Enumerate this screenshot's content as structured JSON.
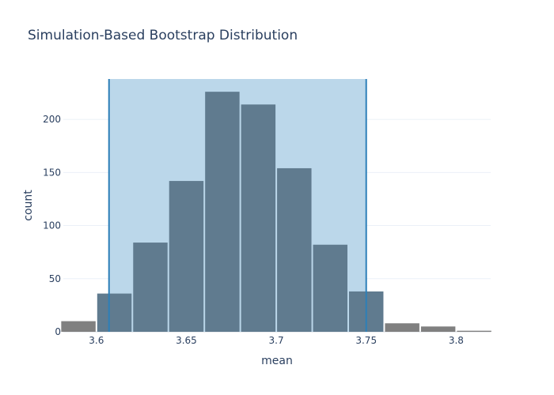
{
  "chart_data": {
    "type": "bar",
    "title": "Simulation-Based Bootstrap Distribution",
    "xlabel": "mean",
    "ylabel": "count",
    "bin_width": 0.02,
    "bin_starts": [
      3.58,
      3.6,
      3.62,
      3.64,
      3.66,
      3.68,
      3.7,
      3.72,
      3.74,
      3.76,
      3.78,
      3.8
    ],
    "values": [
      10,
      36,
      84,
      142,
      226,
      214,
      154,
      82,
      38,
      8,
      5,
      1
    ],
    "xlim": [
      3.5816,
      3.8192
    ],
    "ylim": [
      0,
      238
    ],
    "x_ticks": [
      3.6,
      3.65,
      3.7,
      3.75,
      3.8
    ],
    "x_tick_labels": [
      "3.6",
      "3.65",
      "3.7",
      "3.75",
      "3.8"
    ],
    "y_ticks": [
      0,
      50,
      100,
      150,
      200
    ],
    "y_tick_labels": [
      "0",
      "50",
      "100",
      "150",
      "200"
    ],
    "interval": [
      3.607,
      3.75
    ],
    "grid": true,
    "colors": {
      "bar_inside": "#607b8f",
      "bar_outside": "#808080",
      "band_fill": "#bbd7ea",
      "interval_line": "#2d7fb8",
      "grid": "#ebf0f8",
      "text": "#2a3f5f"
    }
  }
}
